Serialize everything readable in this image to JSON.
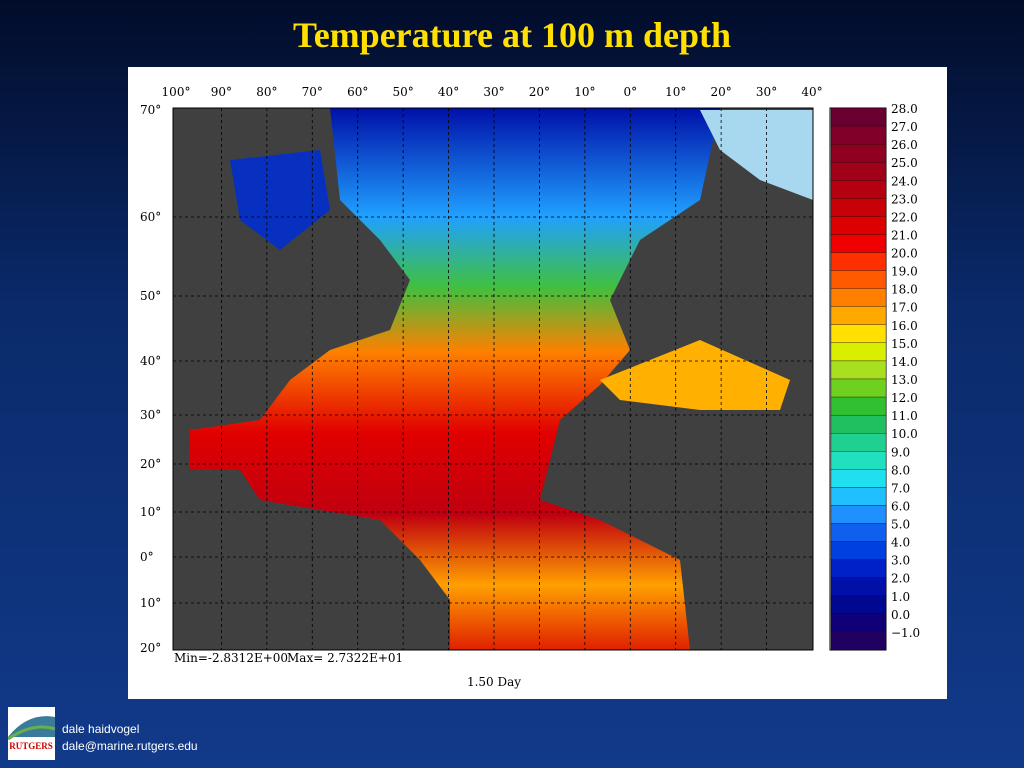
{
  "title": "Temperature at 100 m depth",
  "map": {
    "longitude_labels": [
      "100°",
      "90°",
      "80°",
      "70°",
      "60°",
      "50°",
      "40°",
      "30°",
      "20°",
      "10°",
      "0°",
      "10°",
      "20°",
      "30°",
      "40°"
    ],
    "latitude_labels": [
      "70°",
      "60°",
      "50°",
      "40°",
      "30°",
      "20°",
      "10°",
      "0°",
      "10°",
      "20°"
    ],
    "min_label": "Min=-2.8312E+00",
    "max_label": "Max= 2.7322E+01",
    "time_label": "1.50 Day"
  },
  "colorbar": {
    "labels": [
      "28.0",
      "27.0",
      "26.0",
      "25.0",
      "24.0",
      "23.0",
      "22.0",
      "21.0",
      "20.0",
      "19.0",
      "18.0",
      "17.0",
      "16.0",
      "15.0",
      "14.0",
      "13.0",
      "12.0",
      "11.0",
      "10.0",
      "9.0",
      "8.0",
      "7.0",
      "6.0",
      "5.0",
      "4.0",
      "3.0",
      "2.0",
      "1.0",
      "0.0",
      "−1.0"
    ],
    "colors": [
      "#6a0030",
      "#80002a",
      "#900020",
      "#a00018",
      "#b40010",
      "#c80008",
      "#dc0000",
      "#f00000",
      "#ff3000",
      "#ff5a00",
      "#ff8000",
      "#ffa800",
      "#ffe000",
      "#d8f000",
      "#a8e020",
      "#70d020",
      "#30c030",
      "#20c060",
      "#20d090",
      "#20e0c0",
      "#20e0f0",
      "#20c0ff",
      "#2090ff",
      "#1060f0",
      "#0040e0",
      "#0020c8",
      "#0010a8",
      "#000890",
      "#100078",
      "#200060"
    ]
  },
  "footer": {
    "logo": "RUTGERS",
    "author": "dale haidvogel",
    "email": "dale@marine.rutgers.edu"
  }
}
